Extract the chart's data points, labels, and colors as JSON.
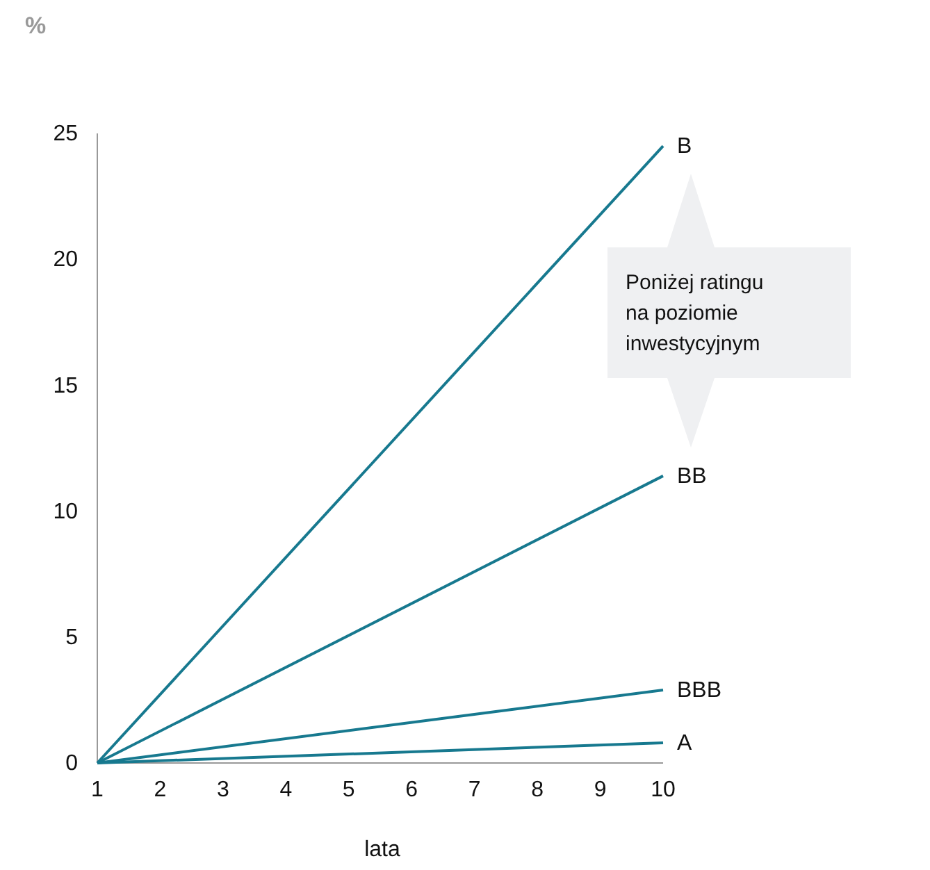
{
  "chart_data": {
    "type": "line",
    "ylabel": "%",
    "xlabel": "lata",
    "x": [
      1,
      10
    ],
    "series": [
      {
        "name": "B",
        "color": "#17798f",
        "values": [
          0,
          24.5
        ]
      },
      {
        "name": "BB",
        "color": "#17798f",
        "values": [
          0,
          11.4
        ]
      },
      {
        "name": "BBB",
        "color": "#17798f",
        "values": [
          0,
          2.9
        ]
      },
      {
        "name": "A",
        "color": "#17798f",
        "values": [
          0,
          0.8
        ]
      }
    ],
    "xlim": [
      1,
      10
    ],
    "xticks": [
      1,
      2,
      3,
      4,
      5,
      6,
      7,
      8,
      9,
      10
    ],
    "ylim": [
      0,
      25
    ],
    "yticks": [
      0,
      5,
      10,
      15,
      20,
      25
    ],
    "annotations": [
      "Poniżej ratingu na poziomie inwestycyjnym"
    ],
    "grid": false,
    "legend": false,
    "marker": "none",
    "line_style": "solid"
  }
}
